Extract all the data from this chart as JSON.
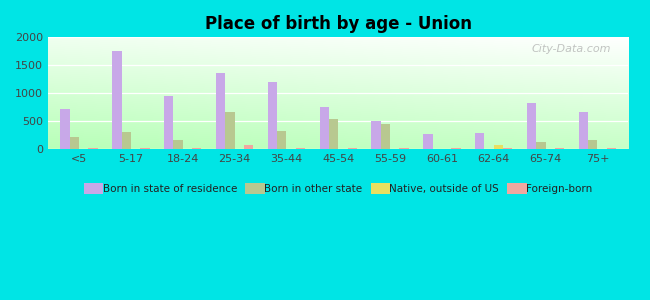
{
  "title": "Place of birth by age - Union",
  "categories": [
    "<5",
    "5-17",
    "18-24",
    "25-34",
    "35-44",
    "45-54",
    "55-59",
    "60-61",
    "62-64",
    "65-74",
    "75+"
  ],
  "series": {
    "born_in_state": [
      720,
      1750,
      950,
      1360,
      1210,
      750,
      500,
      280,
      295,
      820,
      660
    ],
    "born_other_state": [
      215,
      310,
      160,
      660,
      335,
      550,
      460,
      0,
      0,
      130,
      165
    ],
    "native_outside_us": [
      5,
      5,
      5,
      5,
      5,
      5,
      5,
      5,
      75,
      5,
      5
    ],
    "foreign_born": [
      15,
      20,
      15,
      80,
      20,
      20,
      15,
      15,
      15,
      15,
      30
    ]
  },
  "colors": {
    "born_in_state": "#c8a8e8",
    "born_other_state": "#b8c890",
    "native_outside_us": "#e8e060",
    "foreign_born": "#f0a8a0"
  },
  "legend_labels": [
    "Born in state of residence",
    "Born in other state",
    "Native, outside of US",
    "Foreign-born"
  ],
  "ylim": [
    0,
    2000
  ],
  "yticks": [
    0,
    500,
    1000,
    1500,
    2000
  ],
  "background_color": "#00e5e5",
  "watermark": "City-Data.com",
  "bar_width": 0.18
}
